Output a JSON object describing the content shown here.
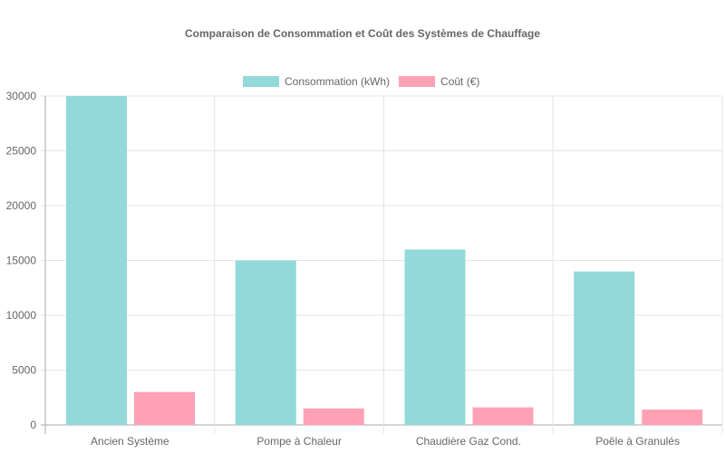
{
  "chart_data": {
    "type": "bar",
    "title": "Comparaison de Consommation et Coût des Systèmes de Chauffage",
    "categories": [
      "Ancien Système",
      "Pompe à Chaleur",
      "Chaudière Gaz Cond.",
      "Poêle à Granulés"
    ],
    "series": [
      {
        "name": "Consommation (kWh)",
        "values": [
          30000,
          15000,
          16000,
          14000
        ],
        "color": "#93d9d9"
      },
      {
        "name": "Coût (€)",
        "values": [
          3000,
          1500,
          1600,
          1400
        ],
        "color": "#ffa1b5"
      }
    ],
    "ylim": [
      0,
      30000
    ],
    "yticks": [
      0,
      5000,
      10000,
      15000,
      20000,
      25000,
      30000
    ],
    "grid": true,
    "legend": "top"
  }
}
